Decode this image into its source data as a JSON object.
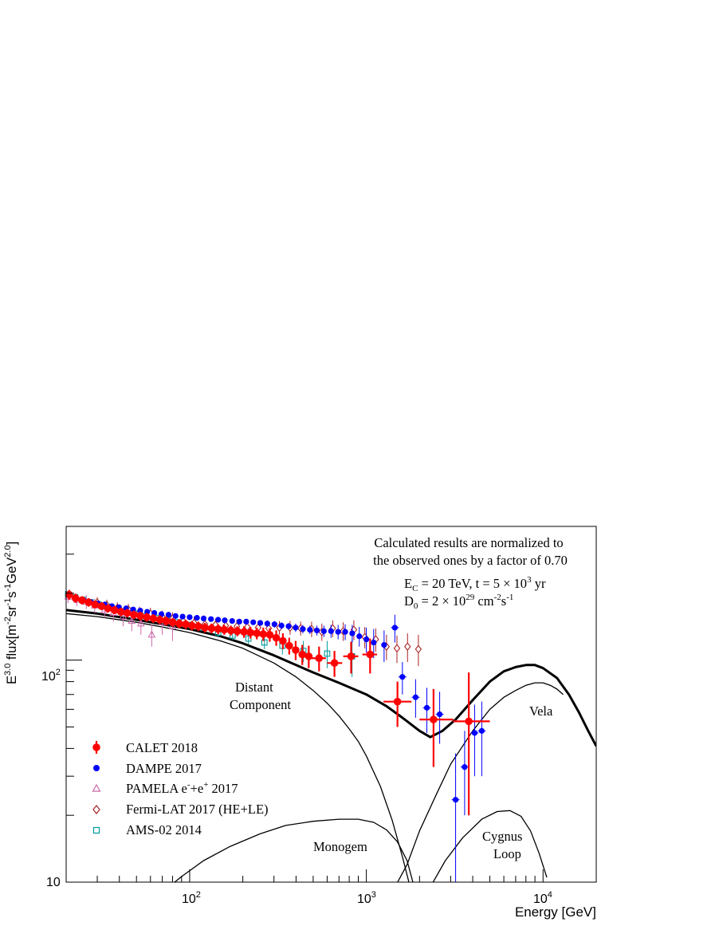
{
  "chart_data": {
    "type": "scatter",
    "title": "",
    "xlabel": "Energy [GeV]",
    "ylabel_parts": [
      "E",
      "3.0",
      " flux[m",
      "-2",
      "sr",
      "-1",
      "s",
      "-1",
      "GeV",
      "2.0",
      "]"
    ],
    "xscale": "log",
    "yscale": "log",
    "xlim": [
      20,
      20000
    ],
    "ylim": [
      10,
      400
    ],
    "x_tick_labels": [
      {
        "value": 100,
        "base": "10",
        "exp": "2"
      },
      {
        "value": 1000,
        "base": "10",
        "exp": "3"
      },
      {
        "value": 10000,
        "base": "10",
        "exp": "4"
      }
    ],
    "y_tick_labels": [
      {
        "value": 10,
        "base": "10",
        "exp": ""
      },
      {
        "value": 100,
        "base": "10",
        "exp": "2"
      }
    ],
    "annotation_lines": [
      "Calculated results are normalized to",
      "the observed ones by a factor of 0.70"
    ],
    "param_line1": {
      "a": "E",
      "a_sub": "C",
      "b": " = 20 TeV, t = 5 × 10",
      "b_sup": "3",
      "c": " yr"
    },
    "param_line2": {
      "a": "D",
      "a_sub": "0",
      "b": " = 2 × 10",
      "b_sup": "29",
      "c": " cm",
      "c_sup": "-2",
      "d": "s",
      "d_sup": "-1"
    },
    "curve_labels": [
      {
        "id": "distant1",
        "text": "Distant",
        "x": 1050,
        "y": 103
      },
      {
        "id": "distant2",
        "text": "Component",
        "x": 1050,
        "y": 83
      },
      {
        "id": "vela",
        "text": "Vela",
        "x": 10500,
        "y": 67
      },
      {
        "id": "monogem",
        "text": "Monogem",
        "x": 540,
        "y": 14.6
      },
      {
        "id": "cygnus1",
        "text": "Cygnus",
        "x": 5200,
        "y": 14.2
      },
      {
        "id": "cygnus2",
        "text": "Loop",
        "x": 5200,
        "y": 12
      }
    ],
    "legend": [
      {
        "label": "CALET 2018",
        "marker": "filled-circle-errorbar",
        "color": "#ff0000"
      },
      {
        "label": "DAMPE 2017",
        "marker": "filled-circle",
        "color": "#0000ff"
      },
      {
        "label_parts": [
          "PAMELA e",
          "-",
          "+e",
          "+",
          " 2017"
        ],
        "marker": "open-triangle",
        "color": "#cc66aa"
      },
      {
        "label": "Fermi-LAT 2017 (HE+LE)",
        "marker": "open-diamond",
        "color": "#aa2222"
      },
      {
        "label": "AMS-02 2014",
        "marker": "open-square",
        "color": "#009999"
      }
    ],
    "legend_placement": "lower-left",
    "grid": false,
    "series": [
      {
        "name": "CALET 2018",
        "color": "#ff0000",
        "x": [
          20.8,
          22.6,
          24.6,
          26.8,
          29.1,
          31.7,
          34.5,
          37.5,
          40.8,
          44.4,
          48.3,
          52.6,
          57.2,
          62.3,
          67.8,
          73.7,
          80.2,
          87.3,
          95,
          103,
          112,
          122,
          133,
          145,
          157,
          171,
          186,
          203,
          221,
          240,
          261,
          284,
          309,
          337,
          366,
          398,
          434,
          472,
          540,
          660,
          820,
          1050,
          1500,
          2400,
          3800
        ],
        "y": [
          197,
          190,
          186,
          182,
          178,
          175,
          171,
          168,
          165,
          163,
          160,
          158,
          156,
          154,
          152,
          150,
          148,
          146,
          145,
          143,
          142,
          140,
          139,
          138,
          137,
          136,
          135,
          134,
          133,
          132,
          131,
          130,
          126,
          122,
          116,
          111,
          106,
          104,
          102,
          97,
          104,
          106,
          65,
          54,
          53
        ],
        "y_low": [
          187,
          181,
          178,
          174,
          171,
          168,
          164,
          161,
          158,
          156,
          153,
          151,
          149,
          147,
          145,
          143,
          141,
          139,
          138,
          136,
          135,
          133,
          132,
          131,
          130,
          129,
          128,
          126,
          125,
          124,
          122,
          121,
          116,
          112,
          106,
          100,
          95,
          92,
          89,
          84,
          87,
          87,
          50,
          33,
          20
        ],
        "y_high": [
          207,
          199,
          194,
          190,
          185,
          182,
          178,
          175,
          172,
          170,
          167,
          165,
          163,
          161,
          159,
          157,
          155,
          153,
          152,
          150,
          149,
          147,
          146,
          145,
          144,
          143,
          142,
          142,
          141,
          140,
          140,
          139,
          136,
          132,
          126,
          122,
          117,
          116,
          115,
          110,
          121,
          125,
          80,
          74,
          88
        ],
        "x_low": [
          null,
          null,
          null,
          null,
          null,
          null,
          null,
          null,
          null,
          null,
          null,
          null,
          null,
          null,
          null,
          null,
          null,
          null,
          null,
          null,
          null,
          null,
          null,
          null,
          null,
          null,
          null,
          null,
          null,
          null,
          null,
          null,
          null,
          null,
          null,
          null,
          null,
          null,
          490,
          600,
          740,
          950,
          1250,
          2000,
          3100
        ],
        "x_high": [
          null,
          null,
          null,
          null,
          null,
          null,
          null,
          null,
          null,
          null,
          null,
          null,
          null,
          null,
          null,
          null,
          null,
          null,
          null,
          null,
          null,
          null,
          null,
          null,
          null,
          null,
          null,
          null,
          null,
          null,
          null,
          null,
          null,
          null,
          null,
          null,
          null,
          null,
          590,
          730,
          900,
          1150,
          1800,
          3100,
          5000
        ]
      },
      {
        "name": "DAMPE 2017",
        "color": "#0000ff",
        "x": [
          25.1,
          27.5,
          30.2,
          33.1,
          36.3,
          39.8,
          43.7,
          47.9,
          52.5,
          57.5,
          63.1,
          69.2,
          75.9,
          83.2,
          91.2,
          100,
          110,
          120,
          132,
          145,
          158,
          174,
          191,
          209,
          229,
          251,
          275,
          302,
          331,
          363,
          398,
          437,
          479,
          525,
          575,
          631,
          692,
          759,
          832,
          912,
          1000,
          1100,
          1260,
          1450,
          1600,
          1900,
          2200,
          2600,
          3200,
          3600,
          4100,
          4500
        ],
        "y": [
          186,
          183,
          180,
          178,
          175,
          173,
          171,
          169,
          167,
          165,
          163,
          161,
          160,
          158,
          157,
          156,
          155,
          154,
          153,
          152,
          151,
          150,
          149,
          149,
          148,
          147,
          146,
          145,
          143,
          142,
          140,
          138,
          137,
          136,
          135,
          135,
          134,
          134,
          132,
          128,
          124,
          120,
          117,
          140,
          84,
          68,
          61,
          57,
          23.5,
          33,
          47,
          48
        ],
        "y_low": [
          183,
          180,
          177,
          175,
          172,
          170,
          168,
          166,
          164,
          162,
          160,
          158,
          157,
          155,
          154,
          153,
          152,
          151,
          150,
          149,
          148,
          147,
          146,
          145,
          144,
          143,
          141,
          140,
          138,
          137,
          134,
          132,
          131,
          129,
          127,
          126,
          124,
          123,
          120,
          115,
          108,
          102,
          98,
          120,
          70,
          55,
          47,
          42,
          10,
          20,
          30,
          30
        ],
        "y_high": [
          189,
          186,
          183,
          181,
          178,
          176,
          174,
          172,
          170,
          168,
          166,
          164,
          163,
          161,
          160,
          159,
          158,
          157,
          156,
          155,
          154,
          153,
          152,
          153,
          152,
          151,
          151,
          150,
          148,
          147,
          146,
          144,
          143,
          143,
          143,
          144,
          144,
          145,
          144,
          141,
          140,
          138,
          136,
          160,
          98,
          82,
          75,
          72,
          38,
          48,
          63,
          65
        ]
      },
      {
        "name": "PAMELA e-+e+ 2017",
        "color": "#cc66aa",
        "x": [
          20.5,
          23,
          26,
          29,
          33,
          37,
          42,
          47,
          53,
          61,
          70,
          80
        ],
        "y": [
          193,
          187,
          183,
          176,
          168,
          163,
          157,
          150,
          146,
          130,
          148,
          142
        ],
        "y_low": [
          181,
          175,
          170,
          163,
          155,
          149,
          142,
          135,
          130,
          115,
          130,
          122
        ],
        "y_high": [
          205,
          199,
          196,
          189,
          181,
          177,
          172,
          165,
          162,
          145,
          166,
          162
        ]
      },
      {
        "name": "Fermi-LAT 2017 (HE+LE)",
        "color": "#aa2222",
        "x": [
          30,
          34,
          39,
          45,
          52,
          60,
          70,
          80,
          92,
          106,
          122,
          140,
          160,
          185,
          212,
          244,
          280,
          322,
          370,
          425,
          490,
          560,
          645,
          740,
          850,
          980,
          1130,
          1300,
          1490,
          1710,
          1970
        ],
        "y": [
          182,
          177,
          172,
          169,
          164,
          162,
          157,
          154,
          150,
          147,
          145,
          144,
          143,
          142,
          141,
          140,
          139,
          140,
          140,
          139,
          138,
          134,
          139,
          135,
          137,
          127,
          124,
          115,
          113,
          115,
          112
        ],
        "y_low": [
          172,
          167,
          162,
          159,
          154,
          152,
          147,
          144,
          140,
          137,
          135,
          134,
          133,
          132,
          131,
          130,
          129,
          130,
          130,
          129,
          127,
          122,
          127,
          122,
          123,
          113,
          109,
          100,
          97,
          98,
          94
        ],
        "y_high": [
          192,
          187,
          182,
          179,
          174,
          172,
          167,
          164,
          160,
          157,
          155,
          154,
          153,
          152,
          151,
          150,
          149,
          150,
          150,
          149,
          149,
          146,
          151,
          148,
          151,
          141,
          139,
          130,
          129,
          132,
          130
        ]
      },
      {
        "name": "AMS-02 2014",
        "color": "#009999",
        "x": [
          20.5,
          22.5,
          25,
          27.5,
          30.5,
          34,
          38,
          43,
          49,
          56,
          64,
          74,
          86,
          101,
          120,
          145,
          175,
          215,
          265,
          335,
          440,
          600,
          830
        ],
        "y": [
          198,
          192,
          187,
          182,
          178,
          174,
          170,
          166,
          162,
          158,
          155,
          151,
          148,
          144,
          140,
          133,
          129,
          125,
          120,
          116,
          110,
          107,
          104
        ],
        "y_low": [
          194,
          188,
          183,
          178,
          174,
          170,
          166,
          162,
          158,
          154,
          151,
          147,
          144,
          139,
          135,
          127,
          123,
          118,
          112,
          106,
          98,
          92,
          84
        ],
        "y_high": [
          202,
          196,
          191,
          186,
          182,
          178,
          174,
          170,
          166,
          162,
          159,
          155,
          152,
          149,
          145,
          139,
          135,
          132,
          128,
          126,
          122,
          122,
          124
        ]
      },
      {
        "name": "Total",
        "style": "thick-line",
        "color": "#000000",
        "x": [
          20,
          30,
          50,
          70,
          100,
          150,
          200,
          300,
          400,
          500,
          700,
          1000,
          1300,
          1600,
          2000,
          2300,
          2700,
          3200,
          4000,
          5000,
          6000,
          7000,
          8000,
          9000,
          10000,
          12000,
          14000,
          16000,
          18000,
          20000
        ],
        "y": [
          168,
          162,
          152,
          145,
          138,
          128,
          119,
          105,
          95,
          88,
          79,
          70,
          62,
          55,
          48,
          45,
          48,
          54,
          66,
          80,
          89,
          93,
          95,
          95,
          92,
          83,
          70,
          58,
          48,
          41
        ]
      },
      {
        "name": "Distant Component",
        "style": "thin-line",
        "color": "#000000",
        "x": [
          20,
          30,
          50,
          70,
          100,
          150,
          200,
          300,
          400,
          500,
          600,
          700,
          800,
          900,
          1000,
          1200,
          1400,
          1600,
          1800
        ],
        "y": [
          162,
          157,
          148,
          141,
          133,
          122,
          113,
          97,
          84,
          73,
          64,
          56,
          49,
          43,
          37,
          27,
          19,
          13,
          9
        ]
      },
      {
        "name": "Vela",
        "style": "thin-line",
        "color": "#000000",
        "x": [
          1400,
          1700,
          2000,
          2500,
          3000,
          4000,
          5000,
          6000,
          7000,
          8000,
          9000,
          10000,
          11000,
          12000,
          13000
        ],
        "y": [
          9,
          12,
          17,
          25,
          34,
          48,
          60,
          68,
          73,
          77,
          79,
          79,
          77,
          74,
          70
        ]
      },
      {
        "name": "Monogem",
        "style": "thin-line",
        "color": "#000000",
        "x": [
          70,
          90,
          120,
          170,
          250,
          350,
          500,
          700,
          900,
          1100,
          1300,
          1500,
          1700,
          1900
        ],
        "y": [
          9,
          10.6,
          12.5,
          14.5,
          16.5,
          18,
          18.8,
          19.2,
          19.2,
          18.6,
          17.2,
          15.2,
          12.5,
          9
        ]
      },
      {
        "name": "Cygnus Loop",
        "style": "thin-line",
        "color": "#000000",
        "x": [
          2300,
          2800,
          3500,
          4500,
          5500,
          6500,
          7500,
          8500,
          9500,
          10500
        ],
        "y": [
          9.5,
          12.5,
          15.8,
          19.2,
          20.8,
          21,
          19.8,
          17,
          13.5,
          10.5
        ]
      }
    ]
  }
}
